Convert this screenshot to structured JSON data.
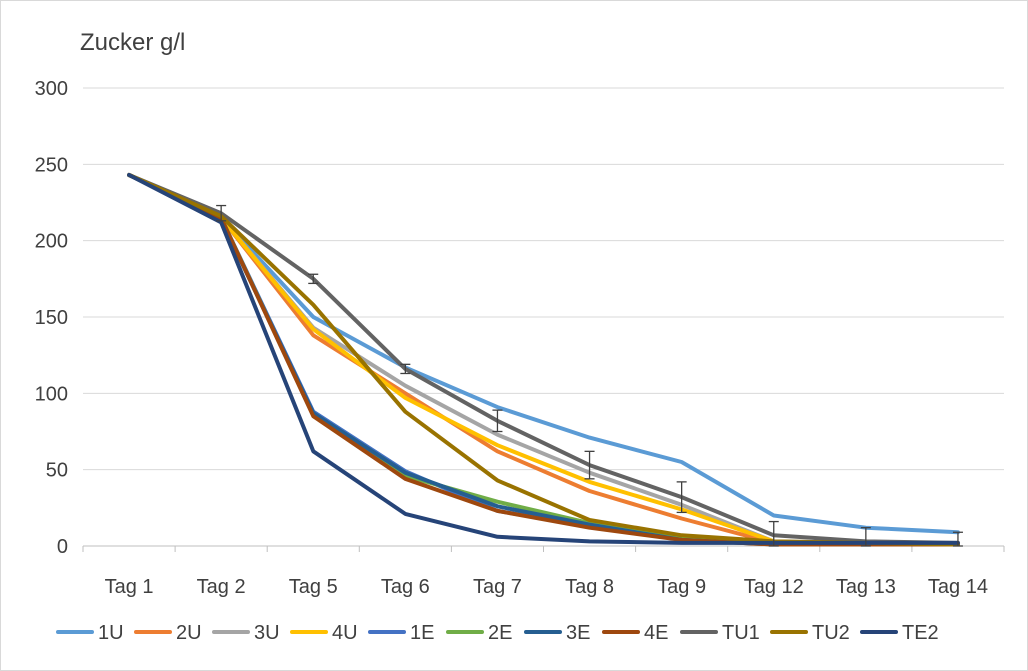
{
  "chart_data": {
    "type": "line",
    "title": "Zucker g/l",
    "xlabel": "",
    "ylabel": "Zucker g/l",
    "categories": [
      "Tag 1",
      "Tag 2",
      "Tag 5",
      "Tag 6",
      "Tag 7",
      "Tag 8",
      "Tag 9",
      "Tag 12",
      "Tag 13",
      "Tag 14"
    ],
    "ylim": [
      0,
      300
    ],
    "yticks": [
      0,
      50,
      100,
      150,
      200,
      250,
      300
    ],
    "grid": true,
    "legend": "bottom",
    "series": [
      {
        "name": "1U",
        "color": "#5b9bd5",
        "values": [
          243,
          215,
          150,
          117,
          91,
          71,
          55,
          20,
          12,
          9
        ]
      },
      {
        "name": "2U",
        "color": "#ed7d31",
        "values": [
          243,
          215,
          138,
          100,
          62,
          36,
          18,
          2,
          1,
          1
        ]
      },
      {
        "name": "3U",
        "color": "#a5a5a5",
        "values": [
          243,
          215,
          143,
          105,
          73,
          48,
          27,
          3,
          2,
          1
        ]
      },
      {
        "name": "4U",
        "color": "#ffc000",
        "values": [
          243,
          215,
          142,
          97,
          66,
          42,
          24,
          3,
          1,
          1
        ]
      },
      {
        "name": "1E",
        "color": "#4472c4",
        "values": [
          243,
          215,
          88,
          49,
          23,
          13,
          5,
          2,
          1,
          1
        ]
      },
      {
        "name": "2E",
        "color": "#70ad47",
        "values": [
          243,
          215,
          86,
          46,
          29,
          15,
          6,
          2,
          1,
          1
        ]
      },
      {
        "name": "3E",
        "color": "#255e91",
        "values": [
          243,
          214,
          87,
          48,
          26,
          14,
          4,
          1,
          1,
          1
        ]
      },
      {
        "name": "4E",
        "color": "#9e480e",
        "values": [
          243,
          215,
          85,
          44,
          23,
          12,
          4,
          1,
          1,
          1
        ]
      },
      {
        "name": "TU1",
        "color": "#636363",
        "values": [
          243,
          218,
          175,
          116,
          82,
          53,
          32,
          7,
          3,
          2
        ]
      },
      {
        "name": "TU2",
        "color": "#997300",
        "values": [
          243,
          216,
          158,
          88,
          43,
          17,
          7,
          3,
          2,
          1
        ]
      },
      {
        "name": "TE2",
        "color": "#264478",
        "values": [
          243,
          212,
          62,
          21,
          6,
          3,
          2,
          2,
          2,
          2
        ]
      }
    ],
    "error_bars": {
      "series": "TU1",
      "values": [
        0,
        5,
        3,
        3,
        7,
        9,
        10,
        9,
        9,
        7
      ]
    }
  }
}
